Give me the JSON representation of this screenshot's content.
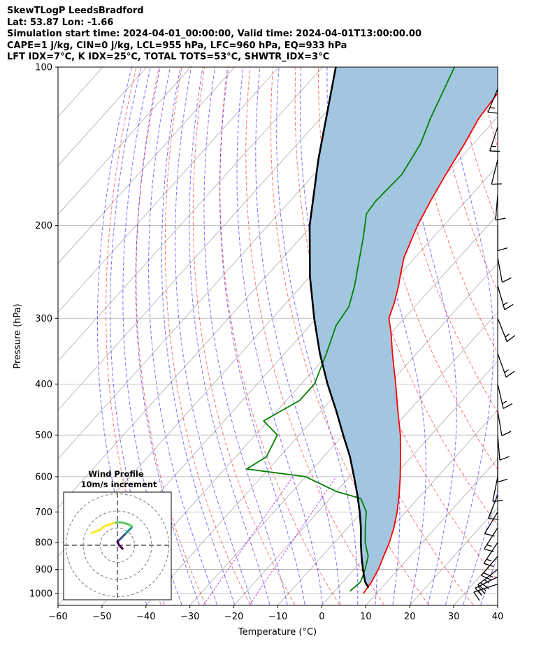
{
  "header": {
    "line1": "SkewTLogP LeedsBradford",
    "line2": "Lat: 53.87   Lon: -1.66",
    "line3": "Simulation start time: 2024-04-01_00:00:00, Valid time: 2024-04-01T13:00:00.00",
    "line4": "CAPE=1 j/kg, CIN=0 j/kg, LCL=955 hPa, LFC=960 hPa, EQ=933 hPa",
    "line5": "LFT IDX=7°C, K IDX=25°C, TOTAL TOTS=53°C, SHWTR_IDX=3°C"
  },
  "chart_data": {
    "type": "line",
    "xlabel": "Temperature (°C)",
    "ylabel": "Pressure (hPa)",
    "xlim": [
      -60,
      40
    ],
    "ylim": [
      1050,
      100
    ],
    "yscale": "log",
    "skew": true,
    "x_ticks": [
      -60,
      -50,
      -40,
      -30,
      -20,
      -10,
      0,
      10,
      20,
      30,
      40
    ],
    "x_tick_labels": [
      "−60",
      "−50",
      "−40",
      "−30",
      "−20",
      "−10",
      "0",
      "10",
      "20",
      "30",
      "40"
    ],
    "y_ticks": [
      1000,
      900,
      800,
      700,
      600,
      500,
      400,
      300,
      200,
      100
    ],
    "y_tick_labels": [
      "1000",
      "900",
      "800",
      "700",
      "600",
      "500",
      "400",
      "300",
      "200",
      "100"
    ],
    "grid": true,
    "colors": {
      "temperature": "#ff0000",
      "dewpoint": "#008000",
      "parcel": "#000000",
      "cape_fill": "#a3c6e0",
      "dry_adiabat": "#ff0000",
      "moist_adiabat": "#0000ff",
      "mixing_ratio": "#9400d3",
      "isotherm": "#808080"
    },
    "series": [
      {
        "key": "temperature",
        "points": [
          [
            1000,
            7.0
          ],
          [
            950,
            6.5
          ],
          [
            900,
            5.5
          ],
          [
            850,
            4.0
          ],
          [
            800,
            2.5
          ],
          [
            750,
            0.5
          ],
          [
            700,
            -2.0
          ],
          [
            650,
            -5.0
          ],
          [
            600,
            -8.5
          ],
          [
            550,
            -12.5
          ],
          [
            500,
            -17.0
          ],
          [
            450,
            -22.5
          ],
          [
            400,
            -28.5
          ],
          [
            350,
            -35.5
          ],
          [
            320,
            -40.0
          ],
          [
            300,
            -43.5
          ],
          [
            280,
            -45.5
          ],
          [
            260,
            -48.0
          ],
          [
            250,
            -49.5
          ],
          [
            230,
            -52.5
          ],
          [
            200,
            -56.0
          ],
          [
            180,
            -58.0
          ],
          [
            160,
            -60.0
          ],
          [
            140,
            -62.0
          ],
          [
            125,
            -64.0
          ],
          [
            110,
            -65.0
          ],
          [
            100,
            -65.0
          ]
        ]
      },
      {
        "key": "dewpoint",
        "points": [
          [
            990,
            3.5
          ],
          [
            950,
            4.0
          ],
          [
            900,
            2.5
          ],
          [
            850,
            0.5
          ],
          [
            800,
            -3.0
          ],
          [
            750,
            -6.0
          ],
          [
            700,
            -9.0
          ],
          [
            660,
            -13.0
          ],
          [
            640,
            -20.0
          ],
          [
            600,
            -30.0
          ],
          [
            580,
            -45.0
          ],
          [
            550,
            -43.0
          ],
          [
            500,
            -45.0
          ],
          [
            470,
            -51.0
          ],
          [
            430,
            -47.0
          ],
          [
            400,
            -47.0
          ],
          [
            350,
            -50.5
          ],
          [
            310,
            -54.0
          ],
          [
            285,
            -55.0
          ],
          [
            260,
            -58.0
          ],
          [
            240,
            -61.0
          ],
          [
            210,
            -66.0
          ],
          [
            190,
            -70.0
          ],
          [
            180,
            -70.5
          ],
          [
            160,
            -70.0
          ],
          [
            140,
            -72.0
          ],
          [
            125,
            -75.0
          ],
          [
            100,
            -80.0
          ]
        ]
      },
      {
        "key": "parcel",
        "points": [
          [
            975,
            7.0
          ],
          [
            950,
            5.0
          ],
          [
            900,
            2.0
          ],
          [
            850,
            -1.0
          ],
          [
            800,
            -4.0
          ],
          [
            750,
            -7.0
          ],
          [
            700,
            -10.5
          ],
          [
            650,
            -14.5
          ],
          [
            600,
            -19.0
          ],
          [
            550,
            -24.0
          ],
          [
            500,
            -30.0
          ],
          [
            450,
            -36.5
          ],
          [
            400,
            -44.0
          ],
          [
            350,
            -52.0
          ],
          [
            300,
            -60.5
          ],
          [
            250,
            -70.0
          ],
          [
            200,
            -80.5
          ],
          [
            150,
            -92.0
          ],
          [
            100,
            -107.0
          ]
        ]
      }
    ],
    "wind_barbs": [
      {
        "p": 960,
        "u": 15,
        "v": 5
      },
      {
        "p": 930,
        "u": 20,
        "v": 10
      },
      {
        "p": 900,
        "u": 18,
        "v": 14
      },
      {
        "p": 850,
        "u": 12,
        "v": 14
      },
      {
        "p": 800,
        "u": 8,
        "v": 12
      },
      {
        "p": 750,
        "u": 7,
        "v": 11
      },
      {
        "p": 700,
        "u": 6,
        "v": 10
      },
      {
        "p": 650,
        "u": 4,
        "v": 10
      },
      {
        "p": 600,
        "u": 2,
        "v": 10
      },
      {
        "p": 550,
        "u": 0,
        "v": 11
      },
      {
        "p": 500,
        "u": -1,
        "v": 12
      },
      {
        "p": 450,
        "u": -2,
        "v": 12
      },
      {
        "p": 400,
        "u": -3,
        "v": 13
      },
      {
        "p": 350,
        "u": -5,
        "v": 14
      },
      {
        "p": 300,
        "u": -6,
        "v": 15
      },
      {
        "p": 260,
        "u": -4,
        "v": 14
      },
      {
        "p": 230,
        "u": -2,
        "v": 11
      },
      {
        "p": 200,
        "u": 0,
        "v": 10
      },
      {
        "p": 175,
        "u": 1,
        "v": 12
      },
      {
        "p": 150,
        "u": 3,
        "v": 12
      },
      {
        "p": 130,
        "u": 4,
        "v": 12
      },
      {
        "p": 110,
        "u": 5,
        "v": 12
      }
    ]
  },
  "hodograph": {
    "title_line1": "Wind Profile",
    "title_line2": "10m/s increment",
    "ring_increment_ms": 10,
    "rings": [
      1,
      2,
      3
    ],
    "trace": [
      [
        3,
        -2
      ],
      [
        2,
        -1
      ],
      [
        1,
        0
      ],
      [
        0.5,
        1
      ],
      [
        0,
        2
      ],
      [
        1,
        3
      ],
      [
        2,
        4
      ],
      [
        3,
        5
      ],
      [
        4,
        6
      ],
      [
        5,
        7
      ],
      [
        6,
        8
      ],
      [
        7,
        9
      ],
      [
        8,
        10
      ],
      [
        8.5,
        11
      ],
      [
        7,
        12
      ],
      [
        4,
        13
      ],
      [
        1,
        13.5
      ],
      [
        -2,
        13
      ],
      [
        -5,
        12
      ],
      [
        -8,
        11
      ],
      [
        -10,
        9
      ],
      [
        -13,
        8
      ],
      [
        -15,
        7
      ]
    ]
  }
}
